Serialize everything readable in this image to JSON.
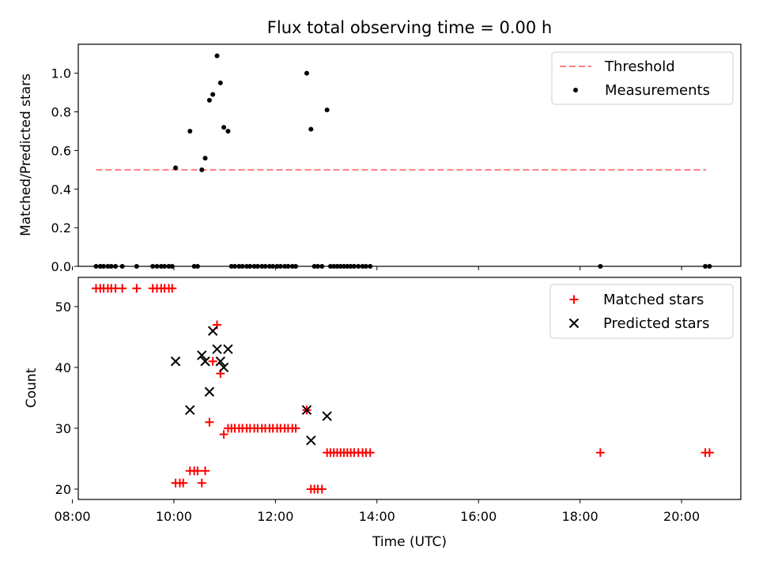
{
  "chart_data": [
    {
      "type": "scatter",
      "title": "Flux total observing time = 0.00 h",
      "ylabel": "Matched/Predicted stars",
      "xlabel": "",
      "xlim": [
        "08:07",
        "21:10"
      ],
      "ylim": [
        0,
        1.15
      ],
      "yticks": [
        "0.0",
        "0.2",
        "0.4",
        "0.6",
        "0.8",
        "1.0"
      ],
      "threshold": {
        "name": "Threshold",
        "y": 0.5,
        "x_from": "08:28",
        "x_to": "20:29",
        "color": "#ff7f7f"
      },
      "measurements": {
        "name": "Measurements",
        "color": "#000000",
        "points": [
          [
            "08:28",
            0
          ],
          [
            "08:33",
            0
          ],
          [
            "08:37",
            0
          ],
          [
            "08:42",
            0
          ],
          [
            "08:46",
            0
          ],
          [
            "08:51",
            0
          ],
          [
            "08:59",
            0
          ],
          [
            "09:16",
            0
          ],
          [
            "09:35",
            0
          ],
          [
            "09:40",
            0
          ],
          [
            "09:45",
            0
          ],
          [
            "09:49",
            0
          ],
          [
            "09:54",
            0
          ],
          [
            "09:58",
            0
          ],
          [
            "10:02",
            0.51
          ],
          [
            "10:19",
            0.7
          ],
          [
            "10:24",
            0
          ],
          [
            "10:28",
            0
          ],
          [
            "10:33",
            0.5
          ],
          [
            "10:37",
            0.56
          ],
          [
            "10:42",
            0.86
          ],
          [
            "10:46",
            0.89
          ],
          [
            "10:51",
            1.09
          ],
          [
            "10:55",
            0.95
          ],
          [
            "10:59",
            0.72
          ],
          [
            "11:04",
            0.7
          ],
          [
            "11:08",
            0
          ],
          [
            "11:12",
            0
          ],
          [
            "11:17",
            0
          ],
          [
            "11:21",
            0
          ],
          [
            "11:26",
            0
          ],
          [
            "11:30",
            0
          ],
          [
            "11:35",
            0
          ],
          [
            "11:39",
            0
          ],
          [
            "11:44",
            0
          ],
          [
            "11:48",
            0
          ],
          [
            "11:53",
            0
          ],
          [
            "11:57",
            0
          ],
          [
            "12:02",
            0
          ],
          [
            "12:06",
            0
          ],
          [
            "12:11",
            0
          ],
          [
            "12:15",
            0
          ],
          [
            "12:20",
            0
          ],
          [
            "12:24",
            0
          ],
          [
            "12:37",
            1.0
          ],
          [
            "12:42",
            0.71
          ],
          [
            "12:46",
            0
          ],
          [
            "12:50",
            0
          ],
          [
            "12:55",
            0
          ],
          [
            "13:01",
            0.81
          ],
          [
            "13:05",
            0
          ],
          [
            "13:09",
            0
          ],
          [
            "13:13",
            0
          ],
          [
            "13:17",
            0
          ],
          [
            "13:21",
            0
          ],
          [
            "13:25",
            0
          ],
          [
            "13:29",
            0
          ],
          [
            "13:33",
            0
          ],
          [
            "13:38",
            0
          ],
          [
            "13:43",
            0
          ],
          [
            "13:47",
            0
          ],
          [
            "13:52",
            0
          ],
          [
            "18:24",
            0
          ],
          [
            "20:28",
            0
          ],
          [
            "20:33",
            0
          ]
        ]
      }
    },
    {
      "type": "scatter",
      "title": "",
      "xlabel": "Time (UTC)",
      "ylabel": "Count",
      "xlim": [
        "08:07",
        "21:10"
      ],
      "ylim": [
        18.3,
        54.8
      ],
      "yticks": [
        "20",
        "30",
        "40",
        "50"
      ],
      "xticks": [
        "08:00",
        "10:00",
        "12:00",
        "14:00",
        "16:00",
        "18:00",
        "20:00"
      ],
      "series": [
        {
          "name": "Matched stars",
          "color": "#ff0000",
          "points": [
            [
              "08:28",
              53
            ],
            [
              "08:33",
              53
            ],
            [
              "08:37",
              53
            ],
            [
              "08:42",
              53
            ],
            [
              "08:46",
              53
            ],
            [
              "08:51",
              53
            ],
            [
              "08:59",
              53
            ],
            [
              "09:16",
              53
            ],
            [
              "09:35",
              53
            ],
            [
              "09:40",
              53
            ],
            [
              "09:45",
              53
            ],
            [
              "09:49",
              53
            ],
            [
              "09:54",
              53
            ],
            [
              "09:58",
              53
            ],
            [
              "10:02",
              21
            ],
            [
              "10:07",
              21
            ],
            [
              "10:11",
              21
            ],
            [
              "10:19",
              23
            ],
            [
              "10:24",
              23
            ],
            [
              "10:28",
              23
            ],
            [
              "10:33",
              21
            ],
            [
              "10:37",
              23
            ],
            [
              "10:42",
              31
            ],
            [
              "10:46",
              41
            ],
            [
              "10:51",
              47
            ],
            [
              "10:55",
              39
            ],
            [
              "10:59",
              29
            ],
            [
              "11:04",
              30
            ],
            [
              "11:08",
              30
            ],
            [
              "11:12",
              30
            ],
            [
              "11:17",
              30
            ],
            [
              "11:21",
              30
            ],
            [
              "11:26",
              30
            ],
            [
              "11:30",
              30
            ],
            [
              "11:35",
              30
            ],
            [
              "11:39",
              30
            ],
            [
              "11:44",
              30
            ],
            [
              "11:48",
              30
            ],
            [
              "11:53",
              30
            ],
            [
              "11:57",
              30
            ],
            [
              "12:02",
              30
            ],
            [
              "12:06",
              30
            ],
            [
              "12:11",
              30
            ],
            [
              "12:15",
              30
            ],
            [
              "12:20",
              30
            ],
            [
              "12:24",
              30
            ],
            [
              "12:37",
              33
            ],
            [
              "12:42",
              20
            ],
            [
              "12:46",
              20
            ],
            [
              "12:50",
              20
            ],
            [
              "12:55",
              20
            ],
            [
              "13:01",
              26
            ],
            [
              "13:05",
              26
            ],
            [
              "13:09",
              26
            ],
            [
              "13:13",
              26
            ],
            [
              "13:17",
              26
            ],
            [
              "13:21",
              26
            ],
            [
              "13:25",
              26
            ],
            [
              "13:29",
              26
            ],
            [
              "13:33",
              26
            ],
            [
              "13:38",
              26
            ],
            [
              "13:43",
              26
            ],
            [
              "13:47",
              26
            ],
            [
              "13:52",
              26
            ],
            [
              "18:24",
              26
            ],
            [
              "20:28",
              26
            ],
            [
              "20:33",
              26
            ]
          ]
        },
        {
          "name": "Predicted stars",
          "color": "#000000",
          "points": [
            [
              "10:02",
              41
            ],
            [
              "10:19",
              33
            ],
            [
              "10:33",
              42
            ],
            [
              "10:37",
              41
            ],
            [
              "10:42",
              36
            ],
            [
              "10:46",
              46
            ],
            [
              "10:51",
              43
            ],
            [
              "10:55",
              41
            ],
            [
              "10:59",
              40
            ],
            [
              "11:04",
              43
            ],
            [
              "12:37",
              33
            ],
            [
              "12:42",
              28
            ],
            [
              "13:01",
              32
            ]
          ]
        }
      ]
    }
  ]
}
